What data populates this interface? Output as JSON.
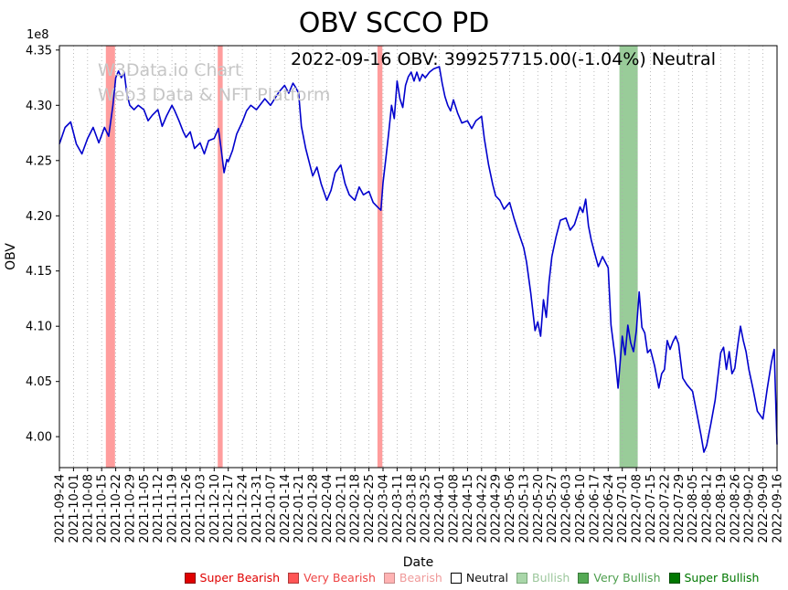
{
  "chart_data": {
    "type": "line",
    "title": "OBV SCCO PD",
    "subtitle": "2022-09-16 OBV: 399257715.00(-1.04%) Neutral",
    "xlabel": "Date",
    "ylabel": "OBV",
    "y_offset_label": "1e8",
    "ylim": [
      3.972,
      4.354
    ],
    "yticks": [
      4.0,
      4.05,
      4.1,
      4.15,
      4.2,
      4.25,
      4.3,
      4.35
    ],
    "grid": "vertical-dotted",
    "legend_position": "bottom",
    "line_color": "#0000cd",
    "x_tick_labels": [
      "2021-09-24",
      "2021-10-01",
      "2021-10-08",
      "2021-10-15",
      "2021-10-22",
      "2021-10-29",
      "2021-11-05",
      "2021-11-12",
      "2021-11-19",
      "2021-11-26",
      "2021-12-03",
      "2021-12-10",
      "2021-12-17",
      "2021-12-24",
      "2021-12-31",
      "2022-01-07",
      "2022-01-14",
      "2022-01-21",
      "2022-01-28",
      "2022-02-04",
      "2022-02-11",
      "2022-02-18",
      "2022-02-25",
      "2022-03-04",
      "2022-03-11",
      "2022-03-18",
      "2022-03-25",
      "2022-04-01",
      "2022-04-08",
      "2022-04-15",
      "2022-04-22",
      "2022-04-29",
      "2022-05-06",
      "2022-05-13",
      "2022-05-20",
      "2022-05-27",
      "2022-06-03",
      "2022-06-10",
      "2022-06-17",
      "2022-06-24",
      "2022-07-01",
      "2022-07-08",
      "2022-07-15",
      "2022-07-22",
      "2022-07-29",
      "2022-08-05",
      "2022-08-12",
      "2022-08-19",
      "2022-08-26",
      "2022-09-02",
      "2022-09-09",
      "2022-09-16"
    ],
    "bands": [
      {
        "kind": "very-bearish",
        "from": 3.3,
        "to": 3.95,
        "color": "#ff4d4d",
        "opacity": 0.55
      },
      {
        "kind": "very-bearish",
        "from": 11.25,
        "to": 11.6,
        "color": "#ff4d4d",
        "opacity": 0.55
      },
      {
        "kind": "very-bearish",
        "from": 22.6,
        "to": 22.95,
        "color": "#ff4d4d",
        "opacity": 0.55
      },
      {
        "kind": "very-bullish",
        "from": 39.8,
        "to": 41.1,
        "color": "#339933",
        "opacity": 0.5
      }
    ],
    "series": [
      {
        "name": "OBV",
        "unit": "1e8",
        "points": [
          [
            0,
            4.265
          ],
          [
            0.4,
            4.28
          ],
          [
            0.8,
            4.285
          ],
          [
            1.2,
            4.265
          ],
          [
            1.6,
            4.256
          ],
          [
            2,
            4.27
          ],
          [
            2.4,
            4.28
          ],
          [
            2.8,
            4.266
          ],
          [
            3.2,
            4.28
          ],
          [
            3.5,
            4.272
          ],
          [
            3.8,
            4.3
          ],
          [
            4.0,
            4.325
          ],
          [
            4.2,
            4.331
          ],
          [
            4.4,
            4.325
          ],
          [
            4.6,
            4.33
          ],
          [
            4.8,
            4.31
          ],
          [
            5,
            4.3
          ],
          [
            5.3,
            4.296
          ],
          [
            5.6,
            4.3
          ],
          [
            6,
            4.296
          ],
          [
            6.3,
            4.286
          ],
          [
            6.6,
            4.291
          ],
          [
            7,
            4.296
          ],
          [
            7.3,
            4.281
          ],
          [
            7.6,
            4.29
          ],
          [
            8,
            4.3
          ],
          [
            8.2,
            4.295
          ],
          [
            8.5,
            4.286
          ],
          [
            8.8,
            4.276
          ],
          [
            9,
            4.271
          ],
          [
            9.3,
            4.276
          ],
          [
            9.6,
            4.261
          ],
          [
            10,
            4.266
          ],
          [
            10.3,
            4.256
          ],
          [
            10.6,
            4.268
          ],
          [
            11,
            4.27
          ],
          [
            11.3,
            4.279
          ],
          [
            11.5,
            4.26
          ],
          [
            11.7,
            4.239
          ],
          [
            11.9,
            4.251
          ],
          [
            12,
            4.249
          ],
          [
            12.3,
            4.259
          ],
          [
            12.6,
            4.274
          ],
          [
            13,
            4.285
          ],
          [
            13.3,
            4.295
          ],
          [
            13.6,
            4.3
          ],
          [
            14,
            4.296
          ],
          [
            14.3,
            4.301
          ],
          [
            14.6,
            4.306
          ],
          [
            15,
            4.3
          ],
          [
            15.3,
            4.306
          ],
          [
            15.6,
            4.312
          ],
          [
            16,
            4.318
          ],
          [
            16.3,
            4.311
          ],
          [
            16.6,
            4.32
          ],
          [
            16.8,
            4.316
          ],
          [
            17,
            4.311
          ],
          [
            17.2,
            4.281
          ],
          [
            17.5,
            4.261
          ],
          [
            17.8,
            4.246
          ],
          [
            18,
            4.236
          ],
          [
            18.3,
            4.244
          ],
          [
            18.6,
            4.229
          ],
          [
            19,
            4.214
          ],
          [
            19.3,
            4.223
          ],
          [
            19.6,
            4.239
          ],
          [
            20,
            4.246
          ],
          [
            20.3,
            4.229
          ],
          [
            20.6,
            4.219
          ],
          [
            21,
            4.214
          ],
          [
            21.3,
            4.226
          ],
          [
            21.6,
            4.219
          ],
          [
            22,
            4.222
          ],
          [
            22.3,
            4.212
          ],
          [
            22.6,
            4.208
          ],
          [
            22.85,
            4.205
          ],
          [
            23,
            4.23
          ],
          [
            23.2,
            4.252
          ],
          [
            23.4,
            4.275
          ],
          [
            23.6,
            4.3
          ],
          [
            23.8,
            4.288
          ],
          [
            24,
            4.322
          ],
          [
            24.2,
            4.306
          ],
          [
            24.4,
            4.298
          ],
          [
            24.6,
            4.318
          ],
          [
            24.8,
            4.326
          ],
          [
            25,
            4.33
          ],
          [
            25.2,
            4.322
          ],
          [
            25.4,
            4.33
          ],
          [
            25.6,
            4.322
          ],
          [
            25.8,
            4.328
          ],
          [
            26,
            4.325
          ],
          [
            26.3,
            4.33
          ],
          [
            26.6,
            4.333
          ],
          [
            27,
            4.335
          ],
          [
            27.2,
            4.32
          ],
          [
            27.4,
            4.308
          ],
          [
            27.6,
            4.3
          ],
          [
            27.8,
            4.295
          ],
          [
            28,
            4.305
          ],
          [
            28.3,
            4.293
          ],
          [
            28.6,
            4.284
          ],
          [
            29,
            4.286
          ],
          [
            29.3,
            4.279
          ],
          [
            29.6,
            4.286
          ],
          [
            30,
            4.29
          ],
          [
            30.2,
            4.27
          ],
          [
            30.5,
            4.246
          ],
          [
            30.8,
            4.228
          ],
          [
            31,
            4.218
          ],
          [
            31.3,
            4.214
          ],
          [
            31.6,
            4.206
          ],
          [
            32,
            4.212
          ],
          [
            32.3,
            4.198
          ],
          [
            32.6,
            4.186
          ],
          [
            33,
            4.171
          ],
          [
            33.2,
            4.158
          ],
          [
            33.5,
            4.13
          ],
          [
            33.8,
            4.096
          ],
          [
            34,
            4.104
          ],
          [
            34.2,
            4.091
          ],
          [
            34.4,
            4.124
          ],
          [
            34.6,
            4.108
          ],
          [
            34.8,
            4.14
          ],
          [
            35,
            4.163
          ],
          [
            35.3,
            4.181
          ],
          [
            35.6,
            4.196
          ],
          [
            36,
            4.198
          ],
          [
            36.3,
            4.187
          ],
          [
            36.6,
            4.192
          ],
          [
            37,
            4.208
          ],
          [
            37.2,
            4.203
          ],
          [
            37.4,
            4.215
          ],
          [
            37.6,
            4.191
          ],
          [
            37.8,
            4.178
          ],
          [
            38,
            4.168
          ],
          [
            38.3,
            4.154
          ],
          [
            38.6,
            4.163
          ],
          [
            39,
            4.153
          ],
          [
            39.2,
            4.101
          ],
          [
            39.5,
            4.071
          ],
          [
            39.7,
            4.044
          ],
          [
            40,
            4.091
          ],
          [
            40.2,
            4.074
          ],
          [
            40.4,
            4.101
          ],
          [
            40.6,
            4.085
          ],
          [
            40.8,
            4.077
          ],
          [
            41,
            4.096
          ],
          [
            41.2,
            4.131
          ],
          [
            41.4,
            4.099
          ],
          [
            41.6,
            4.094
          ],
          [
            41.8,
            4.076
          ],
          [
            42,
            4.079
          ],
          [
            42.3,
            4.064
          ],
          [
            42.6,
            4.044
          ],
          [
            42.8,
            4.057
          ],
          [
            43,
            4.061
          ],
          [
            43.2,
            4.087
          ],
          [
            43.4,
            4.079
          ],
          [
            43.6,
            4.086
          ],
          [
            43.8,
            4.091
          ],
          [
            44,
            4.084
          ],
          [
            44.3,
            4.053
          ],
          [
            44.6,
            4.047
          ],
          [
            45,
            4.041
          ],
          [
            45.3,
            4.021
          ],
          [
            45.6,
            4.001
          ],
          [
            45.8,
            3.986
          ],
          [
            46,
            3.992
          ],
          [
            46.3,
            4.012
          ],
          [
            46.6,
            4.033
          ],
          [
            47,
            4.076
          ],
          [
            47.2,
            4.081
          ],
          [
            47.4,
            4.061
          ],
          [
            47.6,
            4.077
          ],
          [
            47.8,
            4.057
          ],
          [
            48,
            4.062
          ],
          [
            48.2,
            4.082
          ],
          [
            48.4,
            4.1
          ],
          [
            48.6,
            4.087
          ],
          [
            48.8,
            4.077
          ],
          [
            49,
            4.061
          ],
          [
            49.3,
            4.043
          ],
          [
            49.6,
            4.023
          ],
          [
            50,
            4.016
          ],
          [
            50.3,
            4.043
          ],
          [
            50.6,
            4.067
          ],
          [
            50.8,
            4.079
          ],
          [
            51,
            3.993
          ]
        ]
      }
    ]
  },
  "watermark": {
    "line1": "W3Data.io Chart",
    "line2": "Web3 Data & NFT Platform"
  },
  "legend": {
    "items": [
      {
        "label": "Super Bearish",
        "color": "#e00000",
        "border": "#8a0000",
        "text_color": "#e00000"
      },
      {
        "label": "Very Bearish",
        "color": "#ff5555",
        "border": "#b03a3a",
        "text_color": "#ee4444"
      },
      {
        "label": "Bearish",
        "color": "#ffb3b3",
        "border": "#c98a8a",
        "text_color": "#f09a9a"
      },
      {
        "label": "Neutral",
        "color": "#ffffff",
        "border": "#000000",
        "text_color": "#111111"
      },
      {
        "label": "Bullish",
        "color": "#a9d6a9",
        "border": "#7ba87b",
        "text_color": "#9cc79c"
      },
      {
        "label": "Very Bullish",
        "color": "#55aa55",
        "border": "#3a7a3a",
        "text_color": "#4d9e4d"
      },
      {
        "label": "Super Bullish",
        "color": "#007700",
        "border": "#004d00",
        "text_color": "#007700"
      }
    ]
  }
}
